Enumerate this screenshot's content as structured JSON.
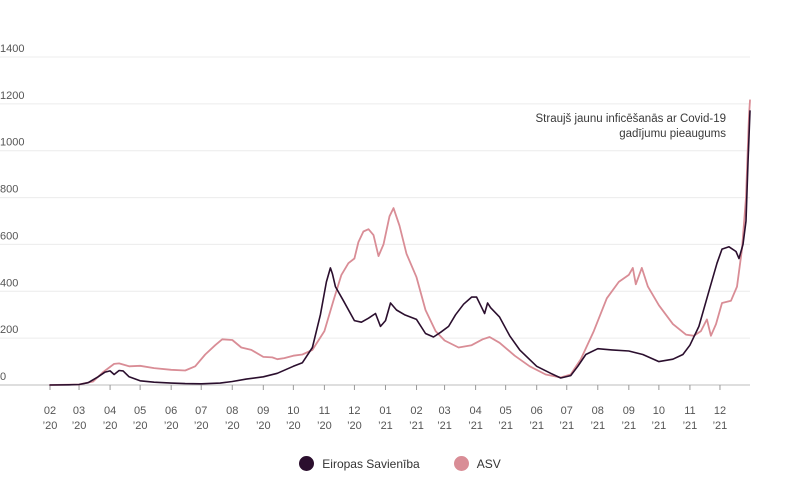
{
  "chart_data": {
    "type": "line",
    "title": "",
    "xlabel": "",
    "ylabel": "",
    "ylim": [
      0,
      1400
    ],
    "yticks": [
      0,
      200,
      400,
      600,
      800,
      1000,
      1200,
      1400
    ],
    "grid": "horizontal",
    "x_range": [
      "2020-02-01",
      "2021-12-31"
    ],
    "x_ticks": [
      {
        "month": "02",
        "year": "’20"
      },
      {
        "month": "03",
        "year": "’20"
      },
      {
        "month": "04",
        "year": "’20"
      },
      {
        "month": "05",
        "year": "’20"
      },
      {
        "month": "06",
        "year": "’20"
      },
      {
        "month": "07",
        "year": "’20"
      },
      {
        "month": "08",
        "year": "’20"
      },
      {
        "month": "09",
        "year": "’20"
      },
      {
        "month": "10",
        "year": "’20"
      },
      {
        "month": "11",
        "year": "’20"
      },
      {
        "month": "12",
        "year": "’20"
      },
      {
        "month": "01",
        "year": "’21"
      },
      {
        "month": "02",
        "year": "’21"
      },
      {
        "month": "03",
        "year": "’21"
      },
      {
        "month": "04",
        "year": "’21"
      },
      {
        "month": "05",
        "year": "’21"
      },
      {
        "month": "06",
        "year": "’21"
      },
      {
        "month": "07",
        "year": "’21"
      },
      {
        "month": "08",
        "year": "’21"
      },
      {
        "month": "09",
        "year": "’21"
      },
      {
        "month": "10",
        "year": "’21"
      },
      {
        "month": "11",
        "year": "’21"
      },
      {
        "month": "12",
        "year": "’21"
      }
    ],
    "tick_dates": [
      "2020-02-01",
      "2020-03-01",
      "2020-04-01",
      "2020-05-01",
      "2020-06-01",
      "2020-07-01",
      "2020-08-01",
      "2020-09-01",
      "2020-10-01",
      "2020-11-01",
      "2020-12-01",
      "2021-01-01",
      "2021-02-01",
      "2021-03-01",
      "2021-04-01",
      "2021-05-01",
      "2021-06-01",
      "2021-07-01",
      "2021-08-01",
      "2021-09-01",
      "2021-10-01",
      "2021-11-01",
      "2021-12-01"
    ],
    "annotation": [
      "Straujš jaunu inficēšanās ar Covid-19",
      "gadījumu pieaugums"
    ],
    "legend_position": "bottom-center",
    "series": [
      {
        "name": "Eiropas Savienība",
        "color": "#2b0f2e",
        "points": [
          [
            "2020-02-01",
            0
          ],
          [
            "2020-02-20",
            1
          ],
          [
            "2020-03-01",
            2
          ],
          [
            "2020-03-10",
            10
          ],
          [
            "2020-03-20",
            35
          ],
          [
            "2020-03-27",
            55
          ],
          [
            "2020-04-01",
            60
          ],
          [
            "2020-04-05",
            45
          ],
          [
            "2020-04-10",
            62
          ],
          [
            "2020-04-14",
            60
          ],
          [
            "2020-04-20",
            35
          ],
          [
            "2020-05-01",
            18
          ],
          [
            "2020-05-15",
            12
          ],
          [
            "2020-06-01",
            8
          ],
          [
            "2020-06-15",
            6
          ],
          [
            "2020-07-01",
            5
          ],
          [
            "2020-07-20",
            8
          ],
          [
            "2020-08-01",
            15
          ],
          [
            "2020-08-15",
            25
          ],
          [
            "2020-09-01",
            35
          ],
          [
            "2020-09-15",
            50
          ],
          [
            "2020-10-01",
            80
          ],
          [
            "2020-10-10",
            95
          ],
          [
            "2020-10-20",
            160
          ],
          [
            "2020-10-28",
            300
          ],
          [
            "2020-11-03",
            440
          ],
          [
            "2020-11-07",
            500
          ],
          [
            "2020-11-09",
            475
          ],
          [
            "2020-11-12",
            420
          ],
          [
            "2020-11-20",
            360
          ],
          [
            "2020-12-01",
            275
          ],
          [
            "2020-12-08",
            268
          ],
          [
            "2020-12-15",
            285
          ],
          [
            "2020-12-22",
            305
          ],
          [
            "2020-12-27",
            250
          ],
          [
            "2021-01-01",
            275
          ],
          [
            "2021-01-06",
            350
          ],
          [
            "2021-01-12",
            320
          ],
          [
            "2021-01-20",
            300
          ],
          [
            "2021-02-01",
            280
          ],
          [
            "2021-02-10",
            220
          ],
          [
            "2021-02-18",
            205
          ],
          [
            "2021-02-25",
            225
          ],
          [
            "2021-03-05",
            250
          ],
          [
            "2021-03-12",
            300
          ],
          [
            "2021-03-20",
            345
          ],
          [
            "2021-03-28",
            375
          ],
          [
            "2021-04-02",
            375
          ],
          [
            "2021-04-06",
            340
          ],
          [
            "2021-04-10",
            305
          ],
          [
            "2021-04-13",
            350
          ],
          [
            "2021-04-16",
            330
          ],
          [
            "2021-04-25",
            290
          ],
          [
            "2021-05-05",
            210
          ],
          [
            "2021-05-15",
            150
          ],
          [
            "2021-06-01",
            80
          ],
          [
            "2021-06-15",
            50
          ],
          [
            "2021-06-25",
            30
          ],
          [
            "2021-07-05",
            40
          ],
          [
            "2021-07-12",
            80
          ],
          [
            "2021-07-20",
            130
          ],
          [
            "2021-08-01",
            155
          ],
          [
            "2021-08-15",
            150
          ],
          [
            "2021-09-01",
            145
          ],
          [
            "2021-09-15",
            130
          ],
          [
            "2021-10-01",
            100
          ],
          [
            "2021-10-15",
            110
          ],
          [
            "2021-10-25",
            130
          ],
          [
            "2021-11-01",
            170
          ],
          [
            "2021-11-10",
            250
          ],
          [
            "2021-11-20",
            400
          ],
          [
            "2021-11-28",
            520
          ],
          [
            "2021-12-03",
            580
          ],
          [
            "2021-12-10",
            590
          ],
          [
            "2021-12-17",
            570
          ],
          [
            "2021-12-20",
            540
          ],
          [
            "2021-12-24",
            600
          ],
          [
            "2021-12-27",
            700
          ],
          [
            "2021-12-29",
            950
          ],
          [
            "2021-12-31",
            1170
          ]
        ]
      },
      {
        "name": "ASV",
        "color": "#d98d96",
        "points": [
          [
            "2020-02-01",
            0
          ],
          [
            "2020-03-01",
            2
          ],
          [
            "2020-03-15",
            15
          ],
          [
            "2020-03-25",
            55
          ],
          [
            "2020-04-05",
            90
          ],
          [
            "2020-04-10",
            92
          ],
          [
            "2020-04-20",
            80
          ],
          [
            "2020-05-01",
            82
          ],
          [
            "2020-05-15",
            72
          ],
          [
            "2020-06-01",
            65
          ],
          [
            "2020-06-15",
            62
          ],
          [
            "2020-06-25",
            80
          ],
          [
            "2020-07-05",
            130
          ],
          [
            "2020-07-15",
            170
          ],
          [
            "2020-07-22",
            195
          ],
          [
            "2020-08-01",
            192
          ],
          [
            "2020-08-10",
            160
          ],
          [
            "2020-08-20",
            150
          ],
          [
            "2020-09-01",
            120
          ],
          [
            "2020-09-10",
            118
          ],
          [
            "2020-09-15",
            110
          ],
          [
            "2020-09-22",
            115
          ],
          [
            "2020-10-01",
            125
          ],
          [
            "2020-10-10",
            130
          ],
          [
            "2020-10-20",
            150
          ],
          [
            "2020-11-01",
            230
          ],
          [
            "2020-11-10",
            360
          ],
          [
            "2020-11-18",
            470
          ],
          [
            "2020-11-25",
            520
          ],
          [
            "2020-12-01",
            540
          ],
          [
            "2020-12-05",
            610
          ],
          [
            "2020-12-10",
            655
          ],
          [
            "2020-12-15",
            665
          ],
          [
            "2020-12-20",
            640
          ],
          [
            "2020-12-25",
            550
          ],
          [
            "2020-12-30",
            600
          ],
          [
            "2021-01-05",
            720
          ],
          [
            "2021-01-09",
            755
          ],
          [
            "2021-01-15",
            680
          ],
          [
            "2021-01-22",
            560
          ],
          [
            "2021-02-01",
            460
          ],
          [
            "2021-02-10",
            320
          ],
          [
            "2021-02-20",
            230
          ],
          [
            "2021-03-01",
            190
          ],
          [
            "2021-03-15",
            160
          ],
          [
            "2021-03-28",
            170
          ],
          [
            "2021-04-08",
            195
          ],
          [
            "2021-04-15",
            205
          ],
          [
            "2021-04-25",
            180
          ],
          [
            "2021-05-10",
            125
          ],
          [
            "2021-05-25",
            80
          ],
          [
            "2021-06-10",
            45
          ],
          [
            "2021-06-25",
            32
          ],
          [
            "2021-07-05",
            45
          ],
          [
            "2021-07-15",
            110
          ],
          [
            "2021-07-28",
            230
          ],
          [
            "2021-08-10",
            370
          ],
          [
            "2021-08-22",
            440
          ],
          [
            "2021-09-01",
            470
          ],
          [
            "2021-09-05",
            500
          ],
          [
            "2021-09-08",
            430
          ],
          [
            "2021-09-14",
            500
          ],
          [
            "2021-09-20",
            420
          ],
          [
            "2021-10-01",
            340
          ],
          [
            "2021-10-15",
            260
          ],
          [
            "2021-10-28",
            215
          ],
          [
            "2021-11-05",
            210
          ],
          [
            "2021-11-12",
            230
          ],
          [
            "2021-11-18",
            280
          ],
          [
            "2021-11-22",
            210
          ],
          [
            "2021-11-27",
            260
          ],
          [
            "2021-12-03",
            350
          ],
          [
            "2021-12-12",
            360
          ],
          [
            "2021-12-18",
            420
          ],
          [
            "2021-12-23",
            580
          ],
          [
            "2021-12-27",
            800
          ],
          [
            "2021-12-30",
            1150
          ],
          [
            "2021-12-31",
            1215
          ]
        ]
      }
    ]
  }
}
